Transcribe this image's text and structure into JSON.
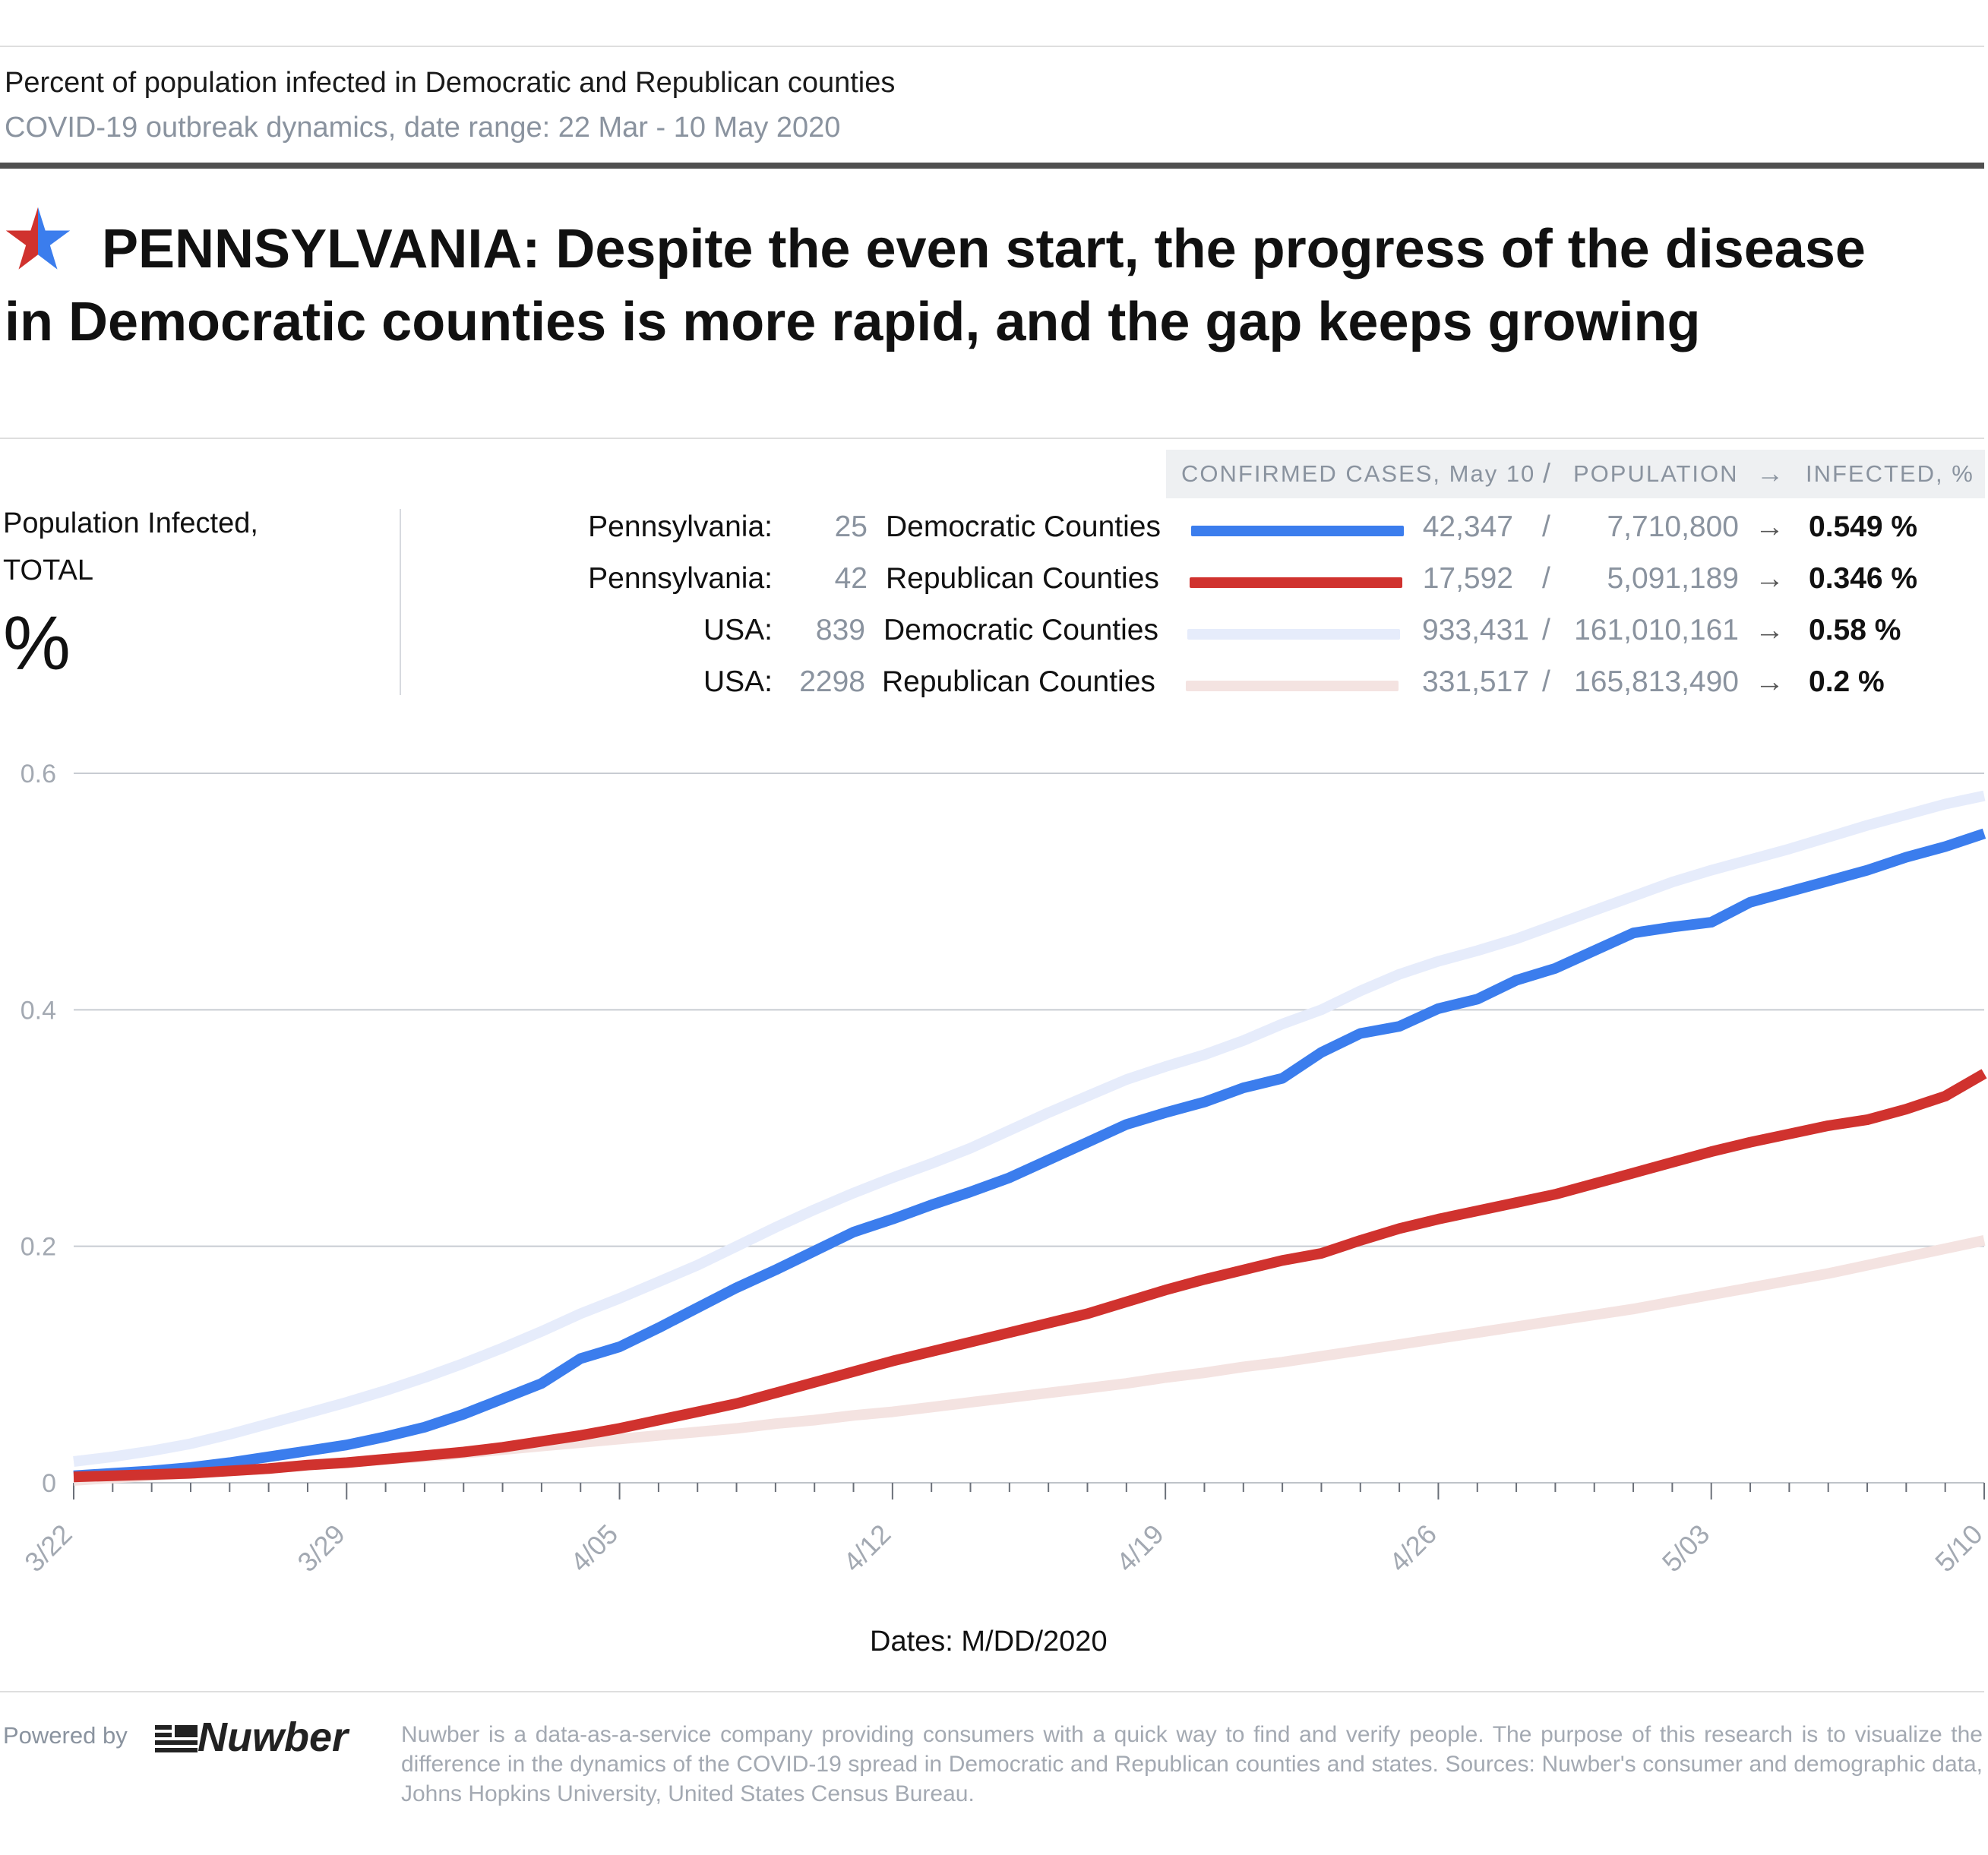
{
  "header": {
    "kicker": "Percent of population infected in Democratic and Republican counties",
    "subkicker": "COVID-19 outbreak dynamics, date range: 22 Mar - 10 May 2020",
    "headline": "PENNSYLVANIA: Despite the even start, the progress of the disease in Democratic counties is more rapid, and the gap keeps growing"
  },
  "legend": {
    "hdr_cases": "CONFIRMED CASES, May 10",
    "hdr_sep": "/",
    "hdr_population": "POPULATION",
    "hdr_arrow": "→",
    "hdr_infected": "INFECTED, %",
    "y_title_1": "Population Infected,",
    "y_title_2": "TOTAL",
    "y_unit": "%",
    "rows": [
      {
        "region": "Pennsylvania:",
        "count": "25",
        "label": "Democratic Counties",
        "cases": "42,347",
        "sep": "/",
        "population": "7,710,800",
        "arrow": "→",
        "infected": "0.549 %",
        "color": "#3b7ded"
      },
      {
        "region": "Pennsylvania:",
        "count": "42",
        "label": "Republican Counties",
        "cases": "17,592",
        "sep": "/",
        "population": "5,091,189",
        "arrow": "→",
        "infected": "0.346 %",
        "color": "#d0322e"
      },
      {
        "region": "USA:",
        "count": "839",
        "label": "Democratic Counties",
        "cases": "933,431",
        "sep": "/",
        "population": "161,010,161",
        "arrow": "→",
        "infected": "0.58 %",
        "color": "#e6ecfb"
      },
      {
        "region": "USA:",
        "count": "2298",
        "label": "Republican Counties",
        "cases": "331,517",
        "sep": "/",
        "population": "165,813,490",
        "arrow": "→",
        "infected": "0.2 %",
        "color": "#f4e3e1"
      }
    ]
  },
  "chart_data": {
    "type": "line",
    "x": [
      "3/22",
      "3/23",
      "3/24",
      "3/25",
      "3/26",
      "3/27",
      "3/28",
      "3/29",
      "3/30",
      "3/31",
      "4/01",
      "4/02",
      "4/03",
      "4/04",
      "4/05",
      "4/06",
      "4/07",
      "4/08",
      "4/09",
      "4/10",
      "4/11",
      "4/12",
      "4/13",
      "4/14",
      "4/15",
      "4/16",
      "4/17",
      "4/18",
      "4/19",
      "4/20",
      "4/21",
      "4/22",
      "4/23",
      "4/24",
      "4/25",
      "4/26",
      "4/27",
      "4/28",
      "4/29",
      "4/30",
      "5/01",
      "5/02",
      "5/03",
      "5/04",
      "5/05",
      "5/06",
      "5/07",
      "5/08",
      "5/09",
      "5/10"
    ],
    "tick_labels": [
      "3/22",
      "3/29",
      "4/05",
      "4/12",
      "4/19",
      "4/26",
      "5/03",
      "5/10"
    ],
    "xlabel": "Dates: M/DD/2020",
    "ylabel": "",
    "ylim": [
      0,
      0.6
    ],
    "yticks": [
      0,
      0.2,
      0.4,
      0.6
    ],
    "ytick_labels": [
      "0",
      "0.2",
      "0.4",
      "0.6"
    ],
    "grid": true,
    "series": [
      {
        "name": "USA: Democratic Counties",
        "color": "#e6ecfb",
        "values": [
          0.018,
          0.022,
          0.027,
          0.033,
          0.041,
          0.05,
          0.059,
          0.068,
          0.078,
          0.089,
          0.101,
          0.114,
          0.128,
          0.143,
          0.156,
          0.17,
          0.184,
          0.2,
          0.216,
          0.231,
          0.245,
          0.258,
          0.27,
          0.283,
          0.298,
          0.313,
          0.327,
          0.341,
          0.352,
          0.362,
          0.374,
          0.388,
          0.4,
          0.416,
          0.43,
          0.441,
          0.45,
          0.46,
          0.472,
          0.484,
          0.496,
          0.508,
          0.518,
          0.527,
          0.536,
          0.546,
          0.556,
          0.565,
          0.574,
          0.581
        ]
      },
      {
        "name": "USA: Republican Counties",
        "color": "#f4e3e1",
        "values": [
          0.002,
          0.004,
          0.006,
          0.008,
          0.01,
          0.012,
          0.015,
          0.017,
          0.02,
          0.022,
          0.025,
          0.028,
          0.031,
          0.034,
          0.037,
          0.04,
          0.043,
          0.046,
          0.05,
          0.053,
          0.057,
          0.06,
          0.064,
          0.068,
          0.072,
          0.076,
          0.08,
          0.084,
          0.089,
          0.093,
          0.098,
          0.102,
          0.107,
          0.112,
          0.117,
          0.122,
          0.127,
          0.132,
          0.137,
          0.142,
          0.147,
          0.153,
          0.159,
          0.165,
          0.171,
          0.177,
          0.184,
          0.191,
          0.198,
          0.205
        ]
      },
      {
        "name": "Pennsylvania: Democratic Counties",
        "color": "#3b7ded",
        "values": [
          0.006,
          0.008,
          0.01,
          0.013,
          0.017,
          0.022,
          0.027,
          0.032,
          0.039,
          0.047,
          0.058,
          0.071,
          0.084,
          0.105,
          0.115,
          0.131,
          0.148,
          0.165,
          0.18,
          0.196,
          0.212,
          0.223,
          0.235,
          0.246,
          0.258,
          0.273,
          0.288,
          0.303,
          0.313,
          0.322,
          0.334,
          0.342,
          0.364,
          0.38,
          0.386,
          0.401,
          0.409,
          0.425,
          0.435,
          0.45,
          0.465,
          0.47,
          0.474,
          0.491,
          0.5,
          0.509,
          0.518,
          0.529,
          0.538,
          0.549
        ]
      },
      {
        "name": "Pennsylvania: Republican Counties",
        "color": "#d0322e",
        "values": [
          0.005,
          0.006,
          0.007,
          0.008,
          0.01,
          0.012,
          0.015,
          0.017,
          0.02,
          0.023,
          0.026,
          0.03,
          0.035,
          0.04,
          0.046,
          0.053,
          0.06,
          0.067,
          0.076,
          0.085,
          0.094,
          0.103,
          0.111,
          0.119,
          0.127,
          0.135,
          0.143,
          0.153,
          0.163,
          0.172,
          0.18,
          0.188,
          0.194,
          0.205,
          0.215,
          0.223,
          0.23,
          0.237,
          0.244,
          0.253,
          0.262,
          0.271,
          0.28,
          0.288,
          0.295,
          0.302,
          0.307,
          0.316,
          0.327,
          0.346
        ]
      }
    ]
  },
  "footer": {
    "powered_by": "Powered by",
    "logo_text": "Nuwber",
    "disclaimer": "Nuwber is a data-as-a-service company providing consumers with a quick way to find and verify people. The purpose of this research is to visualize the difference in the dynamics of the COVID-19 spread in Democratic and Republican counties and states. Sources: Nuwber's consumer and demographic data, Johns Hopkins University, United States Census Bureau."
  }
}
